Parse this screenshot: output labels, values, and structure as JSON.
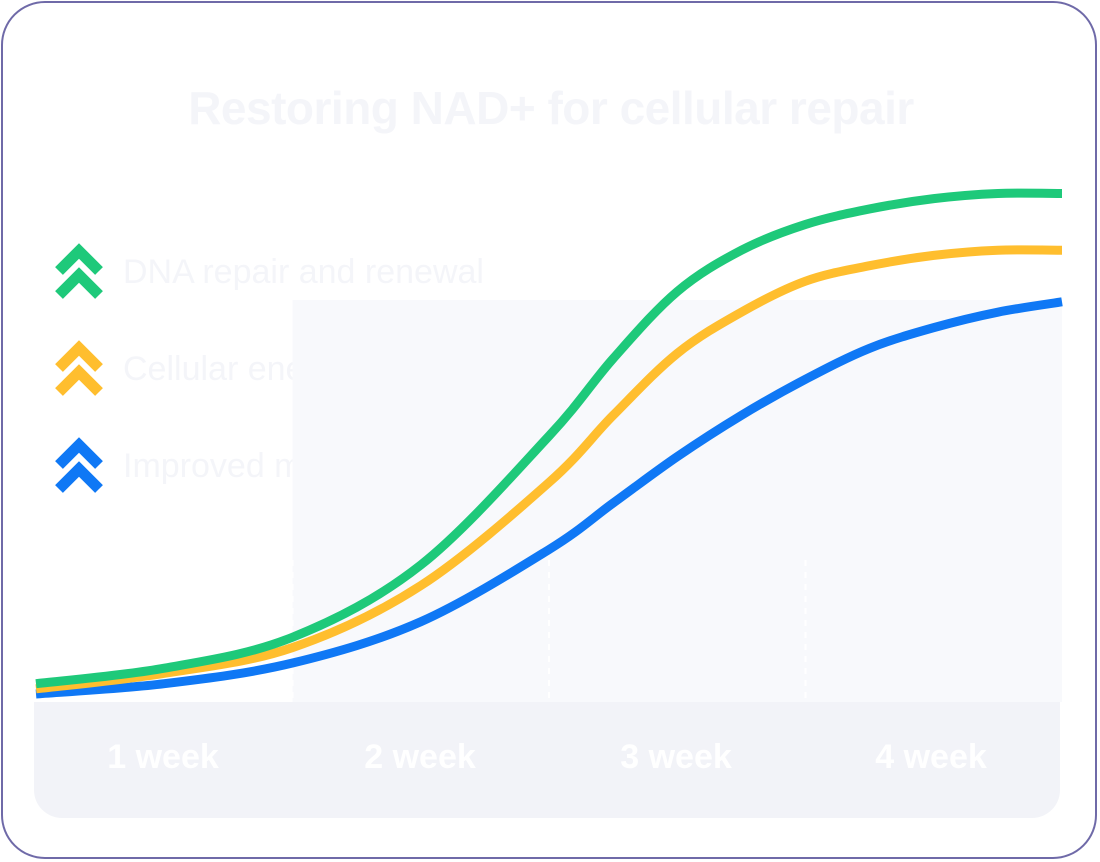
{
  "chart_data": {
    "type": "line",
    "title": "Restoring NAD+ for cellular repair",
    "categories": [
      "1 week",
      "2 week",
      "3 week",
      "4 week"
    ],
    "x_range": [
      0,
      4
    ],
    "y_range": [
      0,
      100
    ],
    "grid": false,
    "legend_position": "top-left",
    "series": [
      {
        "name": "DNA repair and renewal",
        "color": "#1ec97a",
        "x": [
          0.0,
          0.5,
          1.0,
          1.5,
          2.0,
          2.25,
          2.5,
          2.75,
          3.0,
          3.25,
          3.5,
          3.75,
          4.0
        ],
        "values": [
          2,
          5,
          11,
          25,
          50,
          65,
          78,
          86,
          91,
          94,
          96,
          97,
          97
        ]
      },
      {
        "name": "Cellular energy levels",
        "color": "#ffbe2e",
        "x": [
          0.0,
          0.5,
          1.0,
          1.5,
          2.0,
          2.25,
          2.5,
          2.75,
          3.0,
          3.25,
          3.5,
          3.75,
          4.0
        ],
        "values": [
          1,
          4,
          9,
          21,
          41,
          54,
          66,
          74,
          80,
          83,
          85,
          86,
          86
        ]
      },
      {
        "name": "Improved mobility",
        "color": "#0f78f5",
        "x": [
          0.0,
          0.5,
          1.0,
          1.5,
          2.0,
          2.25,
          2.5,
          2.75,
          3.0,
          3.25,
          3.5,
          3.75,
          4.0
        ],
        "values": [
          0,
          2,
          6,
          14,
          28,
          37,
          46,
          54,
          61,
          67,
          71,
          74,
          76
        ]
      }
    ]
  }
}
